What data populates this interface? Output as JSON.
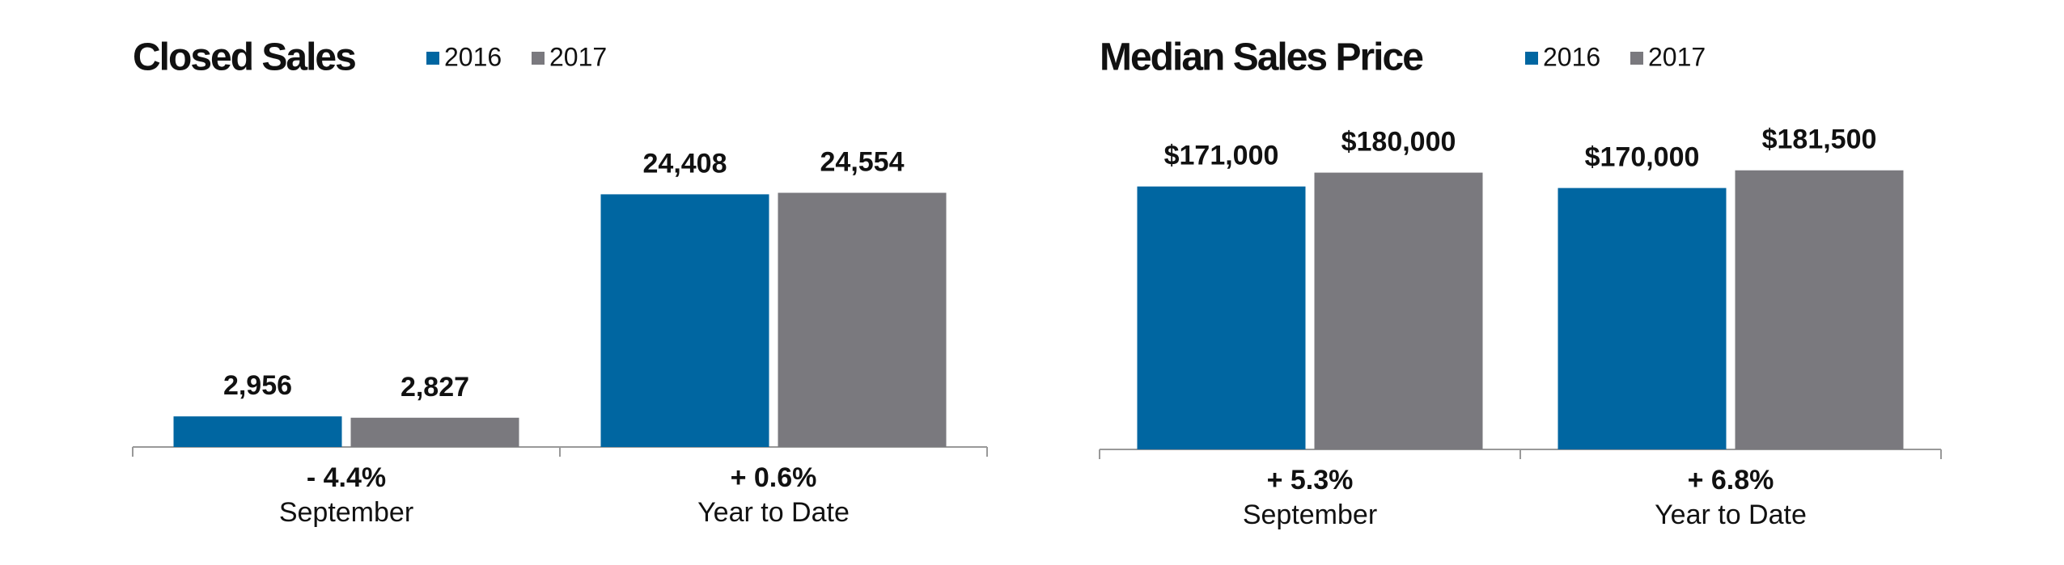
{
  "chart_data": [
    {
      "type": "bar",
      "title": "Closed Sales",
      "categories": [
        "September",
        "Year to Date"
      ],
      "change_labels": [
        "- 4.4%",
        "+ 0.6%"
      ],
      "series": [
        {
          "name": "2016",
          "color": "#0066a1",
          "values": [
            2956,
            24408
          ],
          "value_labels": [
            "2,956",
            "24,408"
          ]
        },
        {
          "name": "2017",
          "color": "#7a797e",
          "values": [
            2827,
            24554
          ],
          "value_labels": [
            "2,827",
            "24,554"
          ]
        }
      ],
      "ylim": [
        0,
        31700
      ]
    },
    {
      "type": "bar",
      "title": "Median Sales Price",
      "categories": [
        "September",
        "Year to Date"
      ],
      "change_labels": [
        "+ 5.3%",
        "+ 6.8%"
      ],
      "series": [
        {
          "name": "2016",
          "color": "#0066a1",
          "values": [
            171000,
            170000
          ],
          "value_labels": [
            "$171,000",
            "$170,000"
          ]
        },
        {
          "name": "2017",
          "color": "#7a797e",
          "values": [
            180000,
            181500
          ],
          "value_labels": [
            "$180,000",
            "$181,500"
          ]
        }
      ],
      "ylim": [
        0,
        215000
      ]
    }
  ]
}
